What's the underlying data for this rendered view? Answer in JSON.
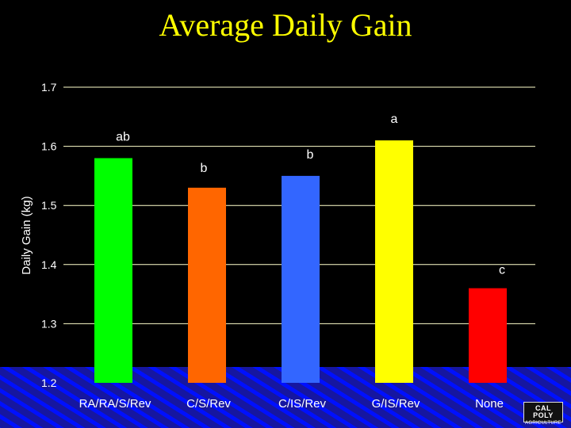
{
  "title": "Average Daily Gain",
  "logo": {
    "line1": "CAL POLY",
    "line2": "AGRICULTURE"
  },
  "chart_data": {
    "type": "bar",
    "title": "Average Daily Gain",
    "xlabel": "",
    "ylabel": "Daily Gain (kg)",
    "ylim": [
      1.2,
      1.7
    ],
    "yticks": [
      "1.2",
      "1.3",
      "1.4",
      "1.5",
      "1.6",
      "1.7"
    ],
    "grid": true,
    "categories": [
      "RA/RA/S/Rev",
      "C/S/Rev",
      "C/IS/Rev",
      "G/IS/Rev",
      "None"
    ],
    "values": [
      1.58,
      1.53,
      1.55,
      1.61,
      1.36
    ],
    "letters": [
      "ab",
      "b",
      "b",
      "a",
      "c"
    ],
    "colors": [
      "#00ff00",
      "#ff6600",
      "#3366ff",
      "#ffff00",
      "#ff0000"
    ],
    "axis_text_color": "#ffffff",
    "gridline_color": "#ffffcc",
    "floor_colors": [
      "#1a1aa8",
      "#0000ff"
    ]
  }
}
